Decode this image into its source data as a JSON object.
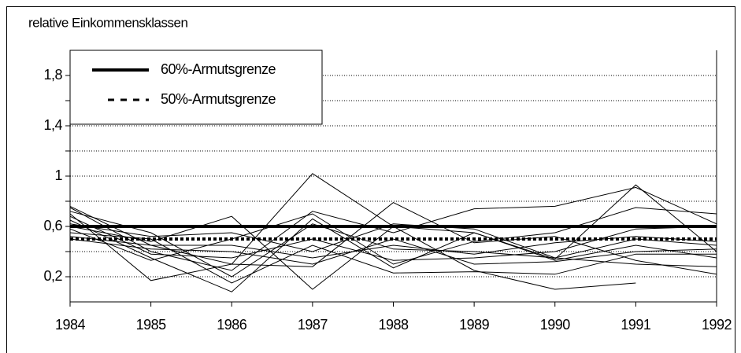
{
  "chart_data": {
    "type": "line",
    "title": "relative Einkommensklassen",
    "xlim": [
      1984,
      1992
    ],
    "xticks": [
      1984,
      1985,
      1986,
      1987,
      1988,
      1989,
      1990,
      1991,
      1992
    ],
    "x": [
      1984,
      1985,
      1986,
      1987,
      1988,
      1989,
      1990,
      1991,
      1992
    ],
    "ylim": [
      0,
      2
    ],
    "yticks": [
      {
        "value": 0.2,
        "label": "0,2"
      },
      {
        "value": 0.6,
        "label": "0,6"
      },
      1,
      {
        "value": 1.4,
        "label": "1,4"
      },
      {
        "value": 1.8,
        "label": "1,8"
      }
    ],
    "minor_yticks": [
      0.4,
      0.8,
      1.2,
      1.6
    ],
    "grid": true,
    "legend": "upper left",
    "series": [
      {
        "name": "60%-Armutsgrenze",
        "color": "#000000",
        "style": "solid",
        "values": [
          0.6,
          0.6,
          0.6,
          0.6,
          0.6,
          0.6,
          0.6,
          0.6,
          0.6
        ]
      },
      {
        "name": "50%-Armutsgrenze",
        "color": "#000000",
        "style": "dashed",
        "values": [
          0.5,
          0.5,
          0.5,
          0.5,
          0.5,
          0.5,
          0.5,
          0.5,
          0.5
        ]
      },
      {
        "color": "#000000",
        "values": [
          0.76,
          0.45,
          0.3,
          1.02,
          0.6,
          0.55,
          0.34,
          0.93,
          0.4
        ]
      },
      {
        "color": "#000000",
        "values": [
          0.75,
          0.4,
          0.25,
          0.72,
          0.55,
          0.74,
          0.76,
          0.91,
          0.62
        ]
      },
      {
        "color": "#000000",
        "values": [
          0.7,
          0.17,
          0.3,
          0.28,
          0.79,
          0.47,
          0.52,
          0.33,
          0.22
        ]
      },
      {
        "color": "#000000",
        "values": [
          0.65,
          0.35,
          0.08,
          0.66,
          0.27,
          0.55,
          0.33,
          0.45,
          0.35
        ]
      },
      {
        "color": "#000000",
        "values": [
          0.6,
          0.48,
          0.68,
          0.1,
          0.6,
          0.25,
          0.1,
          0.15,
          null
        ]
      },
      {
        "color": "#000000",
        "values": [
          0.55,
          0.5,
          0.15,
          0.45,
          0.23,
          0.24,
          0.22,
          0.38,
          0.38
        ]
      },
      {
        "color": "#000000",
        "values": [
          0.5,
          0.42,
          0.4,
          0.3,
          0.5,
          0.3,
          0.32,
          0.4,
          0.42
        ]
      },
      {
        "color": "#000000",
        "values": [
          0.72,
          0.55,
          0.2,
          0.62,
          0.42,
          0.4,
          0.35,
          0.5,
          0.45
        ]
      },
      {
        "color": "#000000",
        "values": [
          0.68,
          0.38,
          0.35,
          0.5,
          0.33,
          0.35,
          0.4,
          0.58,
          0.6
        ]
      },
      {
        "color": "#000000",
        "values": [
          0.62,
          0.52,
          0.55,
          0.4,
          0.62,
          0.58,
          0.35,
          0.3,
          0.28
        ]
      },
      {
        "color": "#000000",
        "values": [
          0.58,
          0.33,
          0.5,
          0.7,
          0.3,
          0.48,
          0.55,
          0.75,
          0.7
        ]
      },
      {
        "color": "#000000",
        "values": [
          0.52,
          0.45,
          0.45,
          0.35,
          0.45,
          0.38,
          0.47,
          0.52,
          0.48
        ]
      }
    ]
  }
}
